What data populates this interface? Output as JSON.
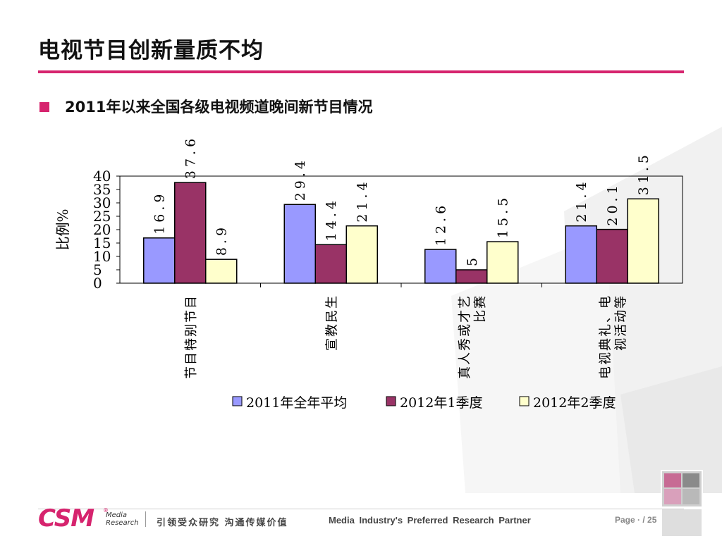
{
  "title": "电视节目创新量质不均",
  "subtitle": "2011年以来全国各级电视频道晚间新节目情况",
  "footer": {
    "logo_text": "CSM",
    "logo_reg": "®",
    "logo_sub_1": "Media",
    "logo_sub_2": "Research",
    "slogan": "引领受众研究 沟通传媒价值",
    "tagline": "Media Industry's Preferred Research Partner",
    "page": "Page · / 25"
  },
  "colors": {
    "accent": "#d6246e"
  },
  "chart_data": {
    "type": "bar",
    "ylabel": "比例%",
    "ylim": [
      0,
      40
    ],
    "yticks": [
      "0",
      "5",
      "10",
      "15",
      "20",
      "25",
      "30",
      "35",
      "40"
    ],
    "grid": false,
    "legend_position": "bottom",
    "categories": [
      [
        "节目特别节目"
      ],
      [
        "宣教民生"
      ],
      [
        "真人秀或才艺",
        "比赛"
      ],
      [
        "电视典礼、电",
        "视活动等"
      ]
    ],
    "series": [
      {
        "name": "2011年全年平均",
        "color": "#9999ff",
        "values": [
          16.9,
          29.4,
          12.6,
          21.4
        ],
        "labels": [
          "16.9",
          "29.4",
          "12.6",
          "21.4"
        ]
      },
      {
        "name": "2012年1季度",
        "color": "#993366",
        "values": [
          37.6,
          14.4,
          5,
          20.1
        ],
        "labels": [
          "37.6",
          "14.4",
          "5",
          "20.1"
        ]
      },
      {
        "name": "2012年2季度",
        "color": "#ffffcc",
        "values": [
          8.9,
          21.4,
          15.5,
          31.5
        ],
        "labels": [
          "8.9",
          "21.4",
          "15.5",
          "31.5"
        ]
      }
    ]
  }
}
